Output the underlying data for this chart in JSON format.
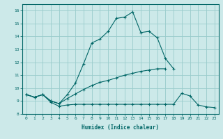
{
  "xlabel": "Humidex (Indice chaleur)",
  "xlim": [
    -0.5,
    23.5
  ],
  "ylim": [
    8,
    16.5
  ],
  "yticks": [
    8,
    9,
    10,
    11,
    12,
    13,
    14,
    15,
    16
  ],
  "xticks": [
    0,
    1,
    2,
    3,
    4,
    5,
    6,
    7,
    8,
    9,
    10,
    11,
    12,
    13,
    14,
    15,
    16,
    17,
    18,
    19,
    20,
    21,
    22,
    23
  ],
  "bg_color": "#cce9e9",
  "line_color": "#006666",
  "grid_color": "#99cccc",
  "line1_x": [
    0,
    1,
    2,
    3,
    4,
    5,
    6,
    7,
    8,
    9,
    10,
    11,
    12,
    13,
    14,
    15,
    16,
    17,
    18
  ],
  "line1_y": [
    9.5,
    9.3,
    9.5,
    9.0,
    8.8,
    9.5,
    10.4,
    11.9,
    13.5,
    13.8,
    14.4,
    15.4,
    15.5,
    15.9,
    14.3,
    14.4,
    13.9,
    12.3,
    11.5
  ],
  "line2_x": [
    0,
    1,
    2,
    3,
    4,
    5,
    6,
    7,
    8,
    9,
    10,
    11,
    12,
    13,
    14,
    15,
    16,
    17
  ],
  "line2_y": [
    9.5,
    9.3,
    9.5,
    9.0,
    8.8,
    9.2,
    9.55,
    9.9,
    10.2,
    10.45,
    10.6,
    10.8,
    11.0,
    11.15,
    11.3,
    11.4,
    11.5,
    11.5
  ],
  "line3_x": [
    0,
    1,
    2,
    3,
    4,
    5,
    6,
    7,
    8,
    9,
    10,
    11,
    12,
    13,
    14,
    15,
    16,
    17,
    18,
    19,
    20,
    21,
    22,
    23
  ],
  "line3_y": [
    9.5,
    9.3,
    9.5,
    8.9,
    8.6,
    8.7,
    8.75,
    8.75,
    8.75,
    8.75,
    8.75,
    8.75,
    8.75,
    8.75,
    8.75,
    8.75,
    8.75,
    8.75,
    8.75,
    9.6,
    9.4,
    8.7,
    8.55,
    8.5
  ]
}
